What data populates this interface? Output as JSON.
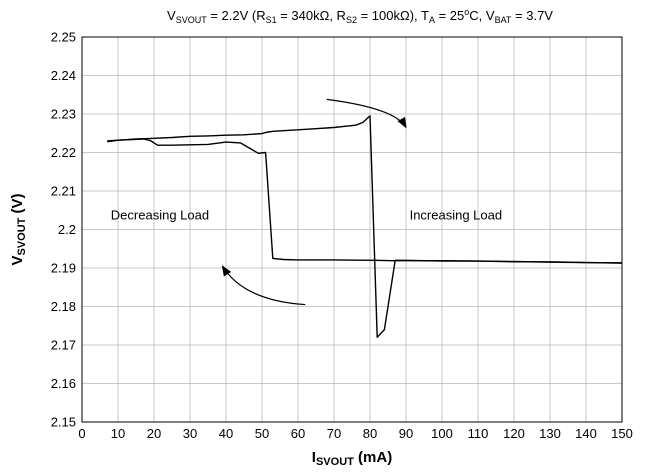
{
  "chart_data": {
    "type": "line",
    "title": {
      "parts": [
        {
          "t": "V"
        },
        {
          "t": "SVOUT",
          "sub": true
        },
        {
          "t": " = 2.2V  (R"
        },
        {
          "t": "S1",
          "sub": true
        },
        {
          "t": " = 340kΩ,  R"
        },
        {
          "t": "S2",
          "sub": true
        },
        {
          "t": " = 100kΩ),  T"
        },
        {
          "t": "A",
          "sub": true
        },
        {
          "t": " = 25"
        },
        {
          "t": "o",
          "sup": true
        },
        {
          "t": "C,  V"
        },
        {
          "t": "BAT",
          "sub": true
        },
        {
          "t": " = 3.7V"
        }
      ]
    },
    "xlabel": {
      "main": "I",
      "sub": "SVOUT",
      "rest": " (mA)"
    },
    "ylabel": {
      "main": "V",
      "sub": "SVOUT",
      "rest": " (V)"
    },
    "xlim": [
      0,
      150
    ],
    "ylim": [
      2.15,
      2.25
    ],
    "x_ticks": [
      0,
      10,
      20,
      30,
      40,
      50,
      60,
      70,
      80,
      90,
      100,
      110,
      120,
      130,
      140,
      150
    ],
    "y_ticks": [
      "2.15",
      "2.16",
      "2.17",
      "2.18",
      "2.19",
      "2.2",
      "2.21",
      "2.22",
      "2.23",
      "2.24",
      "2.25"
    ],
    "grid": true,
    "series_color": "#000000",
    "series": [
      {
        "direction": "Increasing Load",
        "points": [
          [
            7,
            2.2228
          ],
          [
            10,
            2.2232
          ],
          [
            15,
            2.2235
          ],
          [
            20,
            2.2237
          ],
          [
            25,
            2.2239
          ],
          [
            30,
            2.2242
          ],
          [
            35,
            2.2243
          ],
          [
            40,
            2.2245
          ],
          [
            45,
            2.2246
          ],
          [
            50,
            2.2249
          ],
          [
            51,
            2.2252
          ],
          [
            53,
            2.2255
          ],
          [
            60,
            2.2259
          ],
          [
            70,
            2.2265
          ],
          [
            76,
            2.2271
          ],
          [
            78,
            2.2278
          ],
          [
            80,
            2.2295
          ],
          [
            82,
            2.172
          ],
          [
            84,
            2.174
          ],
          [
            87,
            2.192
          ],
          [
            90,
            2.192
          ],
          [
            100,
            2.1918
          ],
          [
            110,
            2.1918
          ],
          [
            120,
            2.1916
          ],
          [
            130,
            2.1916
          ],
          [
            140,
            2.1914
          ],
          [
            150,
            2.1913
          ]
        ]
      },
      {
        "direction": "Decreasing Load",
        "points": [
          [
            150,
            2.1913
          ],
          [
            140,
            2.1914
          ],
          [
            130,
            2.1915
          ],
          [
            120,
            2.1917
          ],
          [
            110,
            2.1918
          ],
          [
            100,
            2.1919
          ],
          [
            90,
            2.1919
          ],
          [
            86,
            2.1919
          ],
          [
            81,
            2.192
          ],
          [
            70,
            2.1921
          ],
          [
            60,
            2.1921
          ],
          [
            56,
            2.1922
          ],
          [
            53,
            2.1925
          ],
          [
            51,
            2.22
          ],
          [
            49,
            2.2198
          ],
          [
            44,
            2.2225
          ],
          [
            40,
            2.2227
          ],
          [
            35,
            2.2221
          ],
          [
            30,
            2.222
          ],
          [
            25,
            2.2219
          ],
          [
            21,
            2.2219
          ],
          [
            19,
            2.2231
          ],
          [
            17,
            2.2235
          ],
          [
            10,
            2.2232
          ],
          [
            7,
            2.223
          ]
        ]
      }
    ],
    "annotations": [
      {
        "text": "Decreasing Load",
        "x": 8,
        "y": 2.2038
      },
      {
        "text": "Increasing Load",
        "x": 91,
        "y": 2.2038
      }
    ],
    "arrows": [
      {
        "label": "increasing",
        "path": [
          [
            68,
            2.2338
          ],
          [
            87,
            2.2315
          ],
          [
            90,
            2.2265
          ]
        ]
      },
      {
        "label": "decreasing",
        "path": [
          [
            62,
            2.1805
          ],
          [
            45,
            2.1815
          ],
          [
            39,
            2.1905
          ]
        ]
      }
    ]
  }
}
